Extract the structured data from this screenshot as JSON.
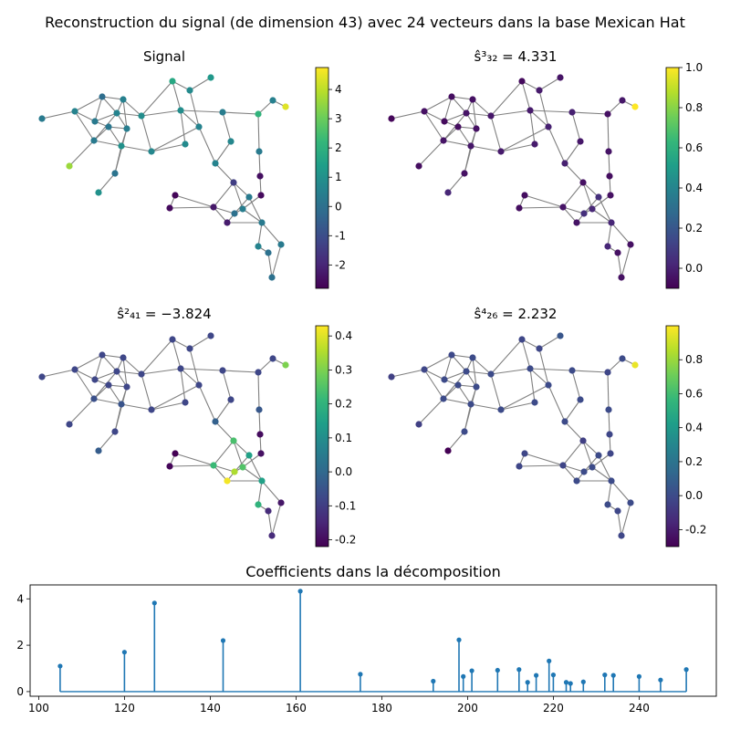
{
  "figure": {
    "suptitle": "Reconstruction du signal (de dimension 43) avec 24 vecteurs dans la base Mexican Hat"
  },
  "colors": {
    "edge": "#808080",
    "stem": "#1f77b4",
    "colormap": [
      "#440154",
      "#482878",
      "#3e4989",
      "#31688e",
      "#26828e",
      "#1f9e89",
      "#35b779",
      "#6ece58",
      "#b5de2b",
      "#fde725"
    ]
  },
  "graph": {
    "node_ids": [
      "n0",
      "n1",
      "n2",
      "n3",
      "n4",
      "n5",
      "n6",
      "n7",
      "n8",
      "n9",
      "n10",
      "n11",
      "n12",
      "n13",
      "n14",
      "n15",
      "n16",
      "n17",
      "n18",
      "n19",
      "n20",
      "n21",
      "n22",
      "n23",
      "n24",
      "n25",
      "n26",
      "n27",
      "n28",
      "n29",
      "n30",
      "n31",
      "n32",
      "n33",
      "n34",
      "n35",
      "n36",
      "n37",
      "n38",
      "n39",
      "n40",
      "n41",
      "n42"
    ]
  },
  "chart_data": [
    {
      "type": "graph-signal",
      "title": "Signal",
      "colorbar": {
        "min": -2.8,
        "max": 4.75,
        "ticks": [
          "-2",
          "-1",
          "0",
          "1",
          "2",
          "3",
          "4"
        ]
      },
      "values": [
        0.3,
        0.6,
        -0.1,
        0.5,
        0.3,
        0.6,
        0.9,
        1.7,
        1.2,
        0.8,
        0.9,
        0.4,
        2.1,
        0.5,
        0.4,
        0.2,
        0.3,
        1.0,
        3.6,
        0.1,
        0.7,
        0.8,
        0.6,
        0.7,
        0.3,
        0.6,
        1.0,
        -2.7,
        -2.6,
        -2.5,
        -2.6,
        -1.4,
        -2.3,
        -2.2,
        0.0,
        0.4,
        0.3,
        0.3,
        0.6,
        0.0,
        0.0,
        0.3,
        4.4
      ]
    },
    {
      "type": "graph-signal",
      "title": "ŝ³₃₂ = 4.331",
      "colorbar": {
        "min": -0.1,
        "max": 1.0,
        "ticks": [
          "0.0",
          "0.2",
          "0.4",
          "0.6",
          "0.8",
          "1.0"
        ]
      },
      "values": [
        -0.08,
        -0.05,
        -0.06,
        -0.05,
        -0.07,
        -0.04,
        -0.03,
        -0.07,
        -0.04,
        -0.02,
        -0.02,
        0.0,
        -0.05,
        -0.03,
        -0.05,
        -0.06,
        -0.04,
        -0.03,
        -0.06,
        -0.05,
        -0.02,
        -0.02,
        0.0,
        -0.03,
        -0.04,
        0.0,
        0.02,
        -0.06,
        -0.06,
        -0.06,
        -0.05,
        -0.05,
        -0.04,
        -0.04,
        0.05,
        0.02,
        0.05,
        0.02,
        0.02,
        -0.05,
        -0.05,
        -0.05,
        1.0
      ]
    },
    {
      "type": "graph-signal",
      "title": "ŝ²₄₁ = −3.824",
      "colorbar": {
        "min": -0.22,
        "max": 0.43,
        "ticks": [
          "-0.2",
          "-0.1",
          "0.0",
          "0.1",
          "0.2",
          "0.3",
          "0.4"
        ]
      },
      "values": [
        -0.08,
        -0.08,
        -0.08,
        -0.08,
        -0.08,
        -0.08,
        -0.08,
        -0.08,
        -0.08,
        -0.08,
        -0.08,
        -0.08,
        -0.08,
        -0.08,
        -0.08,
        -0.08,
        -0.06,
        -0.05,
        -0.08,
        -0.08,
        -0.08,
        -0.08,
        -0.08,
        -0.08,
        -0.04,
        -0.02,
        -0.03,
        -0.22,
        -0.21,
        -0.2,
        -0.19,
        0.24,
        0.22,
        0.42,
        0.35,
        0.25,
        0.15,
        0.15,
        0.2,
        -0.14,
        -0.14,
        -0.18,
        0.3
      ]
    },
    {
      "type": "graph-signal",
      "title": "ŝ⁴₂₆ = 2.232",
      "colorbar": {
        "min": -0.3,
        "max": 1.0,
        "ticks": [
          "-0.2",
          "0.0",
          "0.2",
          "0.4",
          "0.6",
          "0.8"
        ]
      },
      "values": [
        -0.05,
        -0.02,
        -0.01,
        0.0,
        0.0,
        0.0,
        0.0,
        -0.02,
        0.05,
        -0.02,
        0.0,
        0.0,
        -0.02,
        0.0,
        0.0,
        0.0,
        0.0,
        0.0,
        -0.05,
        0.0,
        0.0,
        0.0,
        0.0,
        0.0,
        0.0,
        0.0,
        -0.3,
        -0.02,
        -0.02,
        -0.02,
        -0.02,
        -0.05,
        -0.03,
        0.0,
        0.0,
        0.0,
        0.0,
        0.0,
        0.0,
        -0.02,
        -0.02,
        0.0,
        0.96
      ]
    },
    {
      "type": "stem",
      "title": "Coefficients dans la décomposition",
      "xlim": [
        98,
        258
      ],
      "ylim": [
        -0.2,
        4.6
      ],
      "xticks": [
        100,
        120,
        140,
        160,
        180,
        200,
        220,
        240
      ],
      "yticks": [
        0,
        2,
        4
      ],
      "x": [
        105,
        120,
        127,
        143,
        161,
        175,
        192,
        198,
        199,
        201,
        207,
        212,
        214,
        216,
        219,
        220,
        223,
        224,
        227,
        232,
        234,
        240,
        245,
        251
      ],
      "values": [
        1.1,
        1.7,
        3.82,
        2.2,
        4.33,
        0.75,
        0.45,
        2.23,
        0.65,
        0.9,
        0.92,
        0.95,
        0.4,
        0.7,
        1.32,
        0.72,
        0.4,
        0.35,
        0.42,
        0.72,
        0.7,
        0.65,
        0.5,
        0.95
      ]
    }
  ]
}
